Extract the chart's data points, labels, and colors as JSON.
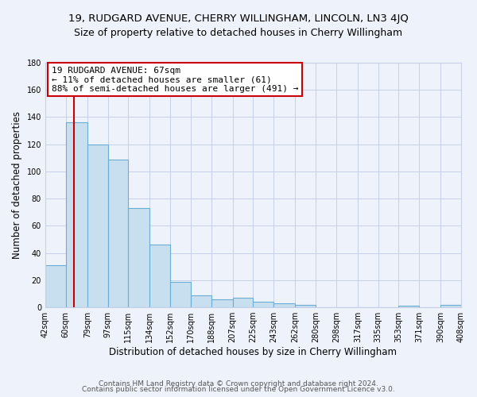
{
  "title": "19, RUDGARD AVENUE, CHERRY WILLINGHAM, LINCOLN, LN3 4JQ",
  "subtitle": "Size of property relative to detached houses in Cherry Willingham",
  "xlabel": "Distribution of detached houses by size in Cherry Willingham",
  "ylabel": "Number of detached properties",
  "bin_labels": [
    "42sqm",
    "60sqm",
    "79sqm",
    "97sqm",
    "115sqm",
    "134sqm",
    "152sqm",
    "170sqm",
    "188sqm",
    "207sqm",
    "225sqm",
    "243sqm",
    "262sqm",
    "280sqm",
    "298sqm",
    "317sqm",
    "335sqm",
    "353sqm",
    "371sqm",
    "390sqm",
    "408sqm"
  ],
  "bin_edges": [
    42,
    60,
    79,
    97,
    115,
    134,
    152,
    170,
    188,
    207,
    225,
    243,
    262,
    280,
    298,
    317,
    335,
    353,
    371,
    390,
    408
  ],
  "bar_heights": [
    31,
    136,
    120,
    109,
    73,
    46,
    19,
    9,
    6,
    7,
    4,
    3,
    2,
    0,
    0,
    0,
    0,
    1,
    0,
    2,
    0
  ],
  "bar_color": "#c8dff0",
  "bar_edge_color": "#6aaed6",
  "property_size": 67,
  "vline_color": "#cc0000",
  "annotation_title": "19 RUDGARD AVENUE: 67sqm",
  "annotation_line1": "← 11% of detached houses are smaller (61)",
  "annotation_line2": "88% of semi-detached houses are larger (491) →",
  "annotation_box_facecolor": "#ffffff",
  "annotation_box_edgecolor": "#cc0000",
  "ylim": [
    0,
    180
  ],
  "yticks": [
    0,
    20,
    40,
    60,
    80,
    100,
    120,
    140,
    160,
    180
  ],
  "footer1": "Contains HM Land Registry data © Crown copyright and database right 2024.",
  "footer2": "Contains public sector information licensed under the Open Government Licence v3.0.",
  "background_color": "#eef2fa",
  "plot_bg_color": "#eef2fa",
  "grid_color": "#c8d0e8",
  "title_fontsize": 9.5,
  "subtitle_fontsize": 9,
  "axis_label_fontsize": 8.5,
  "tick_fontsize": 7,
  "annotation_fontsize": 8,
  "footer_fontsize": 6.5
}
